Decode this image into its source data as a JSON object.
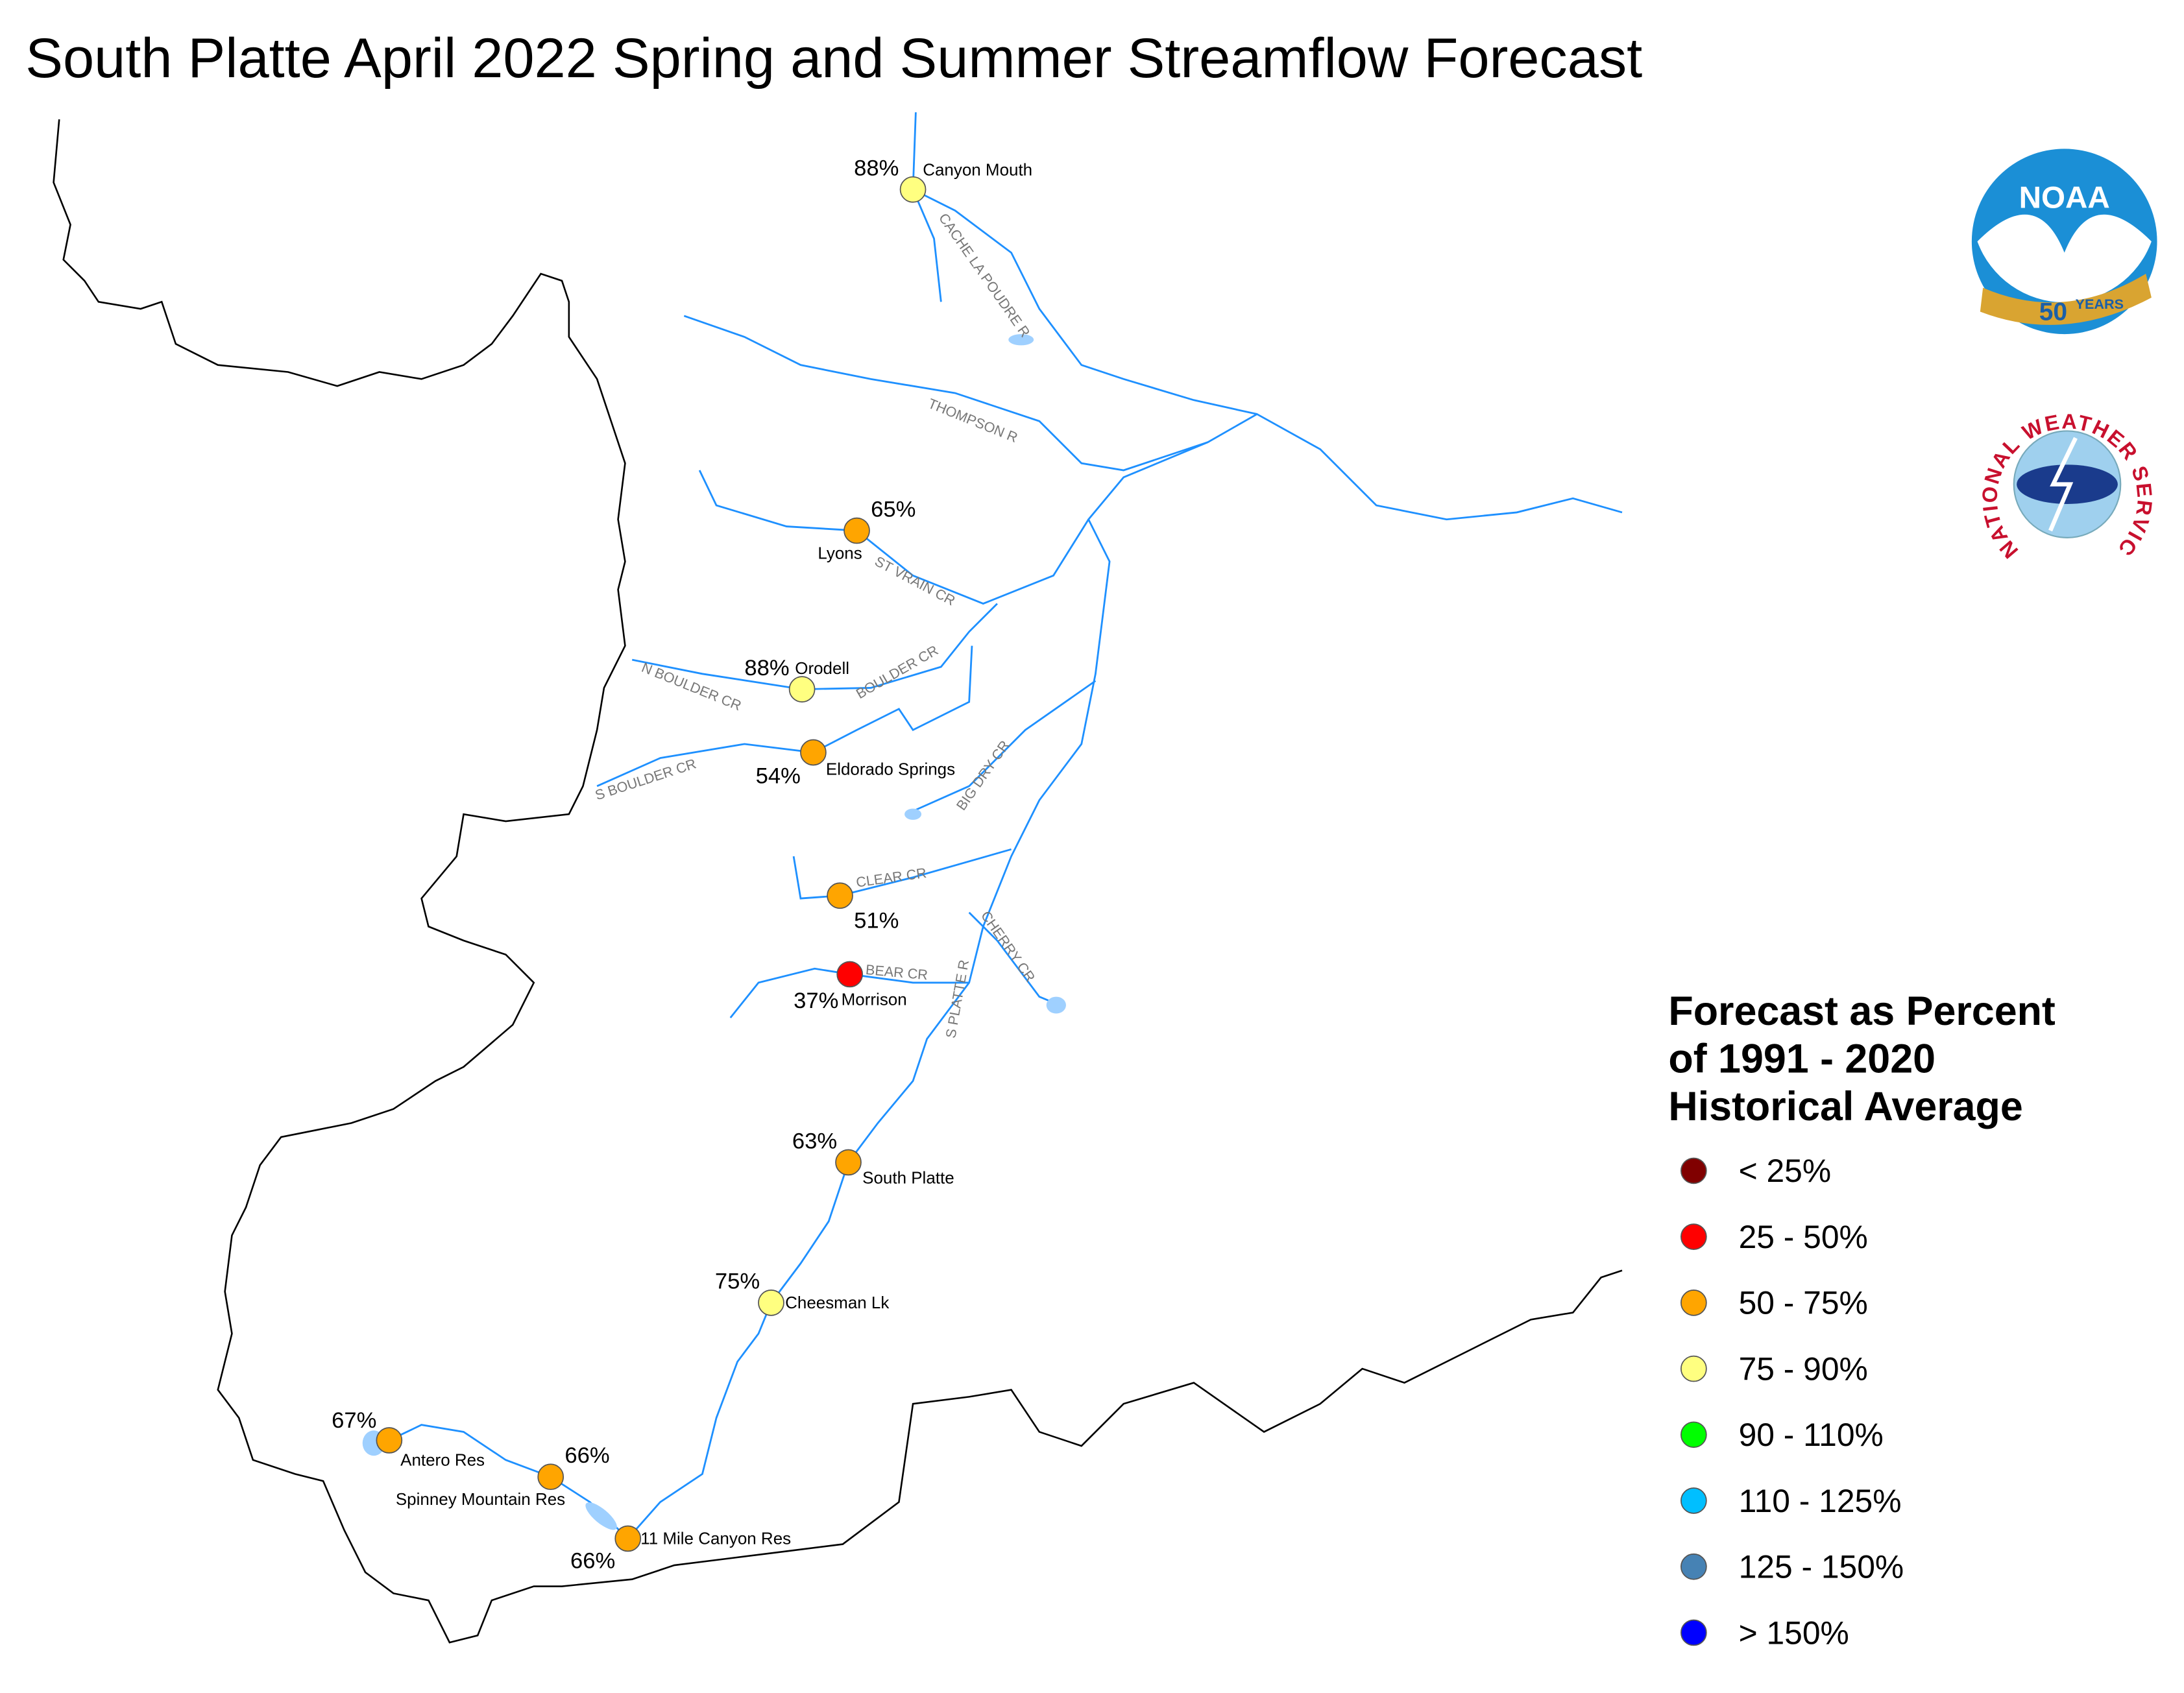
{
  "title": "South Platte April 2022 Spring and Summer Streamflow Forecast",
  "stations": [
    {
      "name": "Canyon Mouth",
      "forecast": "88%",
      "color": "#ffff80"
    },
    {
      "name": "Lyons",
      "forecast": "65%",
      "color": "#ffa500"
    },
    {
      "name": "Orodell",
      "forecast": "88%",
      "color": "#ffff80"
    },
    {
      "name": "Eldorado Springs",
      "forecast": "54%",
      "color": "#ffa500"
    },
    {
      "forecast": "51%",
      "color": "#ffa500"
    },
    {
      "name": "Morrison",
      "forecast": "37%",
      "color": "#ff0000"
    },
    {
      "name": "South Platte",
      "forecast": "63%",
      "color": "#ffa500"
    },
    {
      "name": "Cheesman Lk",
      "forecast": "75%",
      "color": "#ffff80"
    },
    {
      "name": "Antero Res",
      "forecast": "67%",
      "color": "#ffa500"
    },
    {
      "name": "Spinney Mountain Res",
      "forecast": "66%",
      "color": "#ffa500"
    },
    {
      "name": "11 Mile Canyon Res",
      "forecast": "66%",
      "color": "#ffa500"
    }
  ],
  "rivers": [
    "CACHE LA POUDRE R",
    "THOMPSON R",
    "ST VRAIN CR",
    "N BOULDER CR",
    "BOULDER CR",
    "S BOULDER CR",
    "BIG DRY CR",
    "CLEAR CR",
    "BEAR CR",
    "CHERRY CR",
    "S PLATTE R"
  ],
  "legend": {
    "title": [
      "Forecast as Percent",
      "of 1991 - 2020",
      "Historical Average"
    ],
    "items": [
      {
        "label": "< 25%",
        "color": "#800000"
      },
      {
        "label": "25 - 50%",
        "color": "#ff0000"
      },
      {
        "label": "50 - 75%",
        "color": "#ffa500"
      },
      {
        "label": "75 - 90%",
        "color": "#ffff80"
      },
      {
        "label": "90 - 110%",
        "color": "#00ff00"
      },
      {
        "label": "110 - 125%",
        "color": "#00bfff"
      },
      {
        "label": "125 - 150%",
        "color": "#4682b4"
      },
      {
        "label": "> 150%",
        "color": "#0000ff"
      }
    ]
  },
  "logos": {
    "noaa": "NOAA",
    "noaa_years": "50",
    "noaa_years_word": "YEARS",
    "nws": "NATIONAL WEATHER SERVICE"
  }
}
